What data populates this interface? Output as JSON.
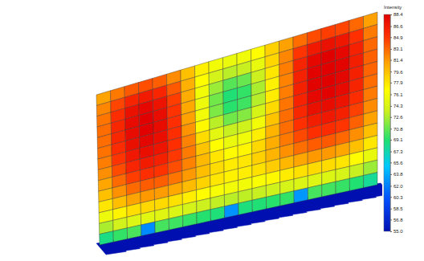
{
  "chart_data": {
    "type": "heatmap",
    "colorbar": {
      "title": "Intensity",
      "range": [
        55,
        88.4
      ],
      "ticks": [
        88.4,
        86.6,
        84.9,
        83.1,
        81.4,
        79.6,
        77.9,
        76.1,
        74.3,
        72.6,
        70.8,
        69.1,
        67.3,
        65.6,
        63.8,
        {
          "value": 62,
          "label": "62.0"
        },
        60.3,
        58.5,
        56.8,
        {
          "value": 55,
          "label": "55.0"
        }
      ]
    },
    "cells": [
      [
        80.9,
        82.5,
        83.6,
        84.0,
        83.4,
        81.8,
        79.6,
        77.4,
        76.0,
        75.5,
        75.8,
        76.9,
        78.8,
        81.0,
        82.9,
        84.1,
        84.6,
        84.3,
        83.1,
        81.0
      ],
      [
        82.0,
        84.3,
        85.9,
        86.5,
        85.8,
        83.6,
        80.3,
        76.8,
        74.1,
        73.0,
        73.4,
        75.4,
        78.6,
        82.0,
        84.9,
        86.6,
        87.2,
        86.8,
        85.1,
        82.4
      ],
      [
        82.6,
        85.3,
        87.2,
        87.9,
        87.1,
        84.6,
        80.5,
        76.0,
        72.2,
        70.4,
        70.9,
        73.6,
        77.8,
        82.3,
        85.9,
        87.9,
        88.4,
        87.9,
        86.1,
        83.1
      ],
      [
        82.9,
        85.7,
        87.6,
        88.3,
        87.5,
        85.0,
        80.7,
        75.6,
        71.1,
        68.9,
        69.5,
        72.6,
        77.3,
        82.1,
        86.1,
        88.2,
        88.4,
        88.1,
        86.3,
        83.3
      ],
      [
        82.9,
        85.7,
        87.6,
        88.3,
        87.6,
        85.2,
        81.0,
        75.9,
        71.4,
        69.2,
        69.8,
        72.9,
        77.6,
        82.3,
        86.2,
        88.2,
        88.4,
        88.0,
        86.2,
        83.2
      ],
      [
        82.7,
        85.4,
        87.3,
        88.0,
        87.4,
        85.3,
        81.5,
        77.0,
        73.0,
        71.1,
        71.6,
        74.3,
        78.4,
        82.6,
        86.0,
        87.9,
        88.2,
        87.7,
        85.9,
        82.9
      ],
      [
        82.3,
        84.9,
        86.7,
        87.4,
        87.0,
        85.2,
        82.1,
        78.3,
        75.0,
        73.4,
        73.8,
        76.0,
        79.4,
        82.9,
        85.7,
        87.3,
        87.6,
        87.1,
        85.3,
        82.4
      ],
      [
        81.7,
        84.1,
        85.8,
        86.5,
        86.2,
        84.8,
        82.4,
        79.4,
        76.8,
        75.5,
        75.8,
        77.5,
        80.1,
        82.9,
        85.1,
        86.4,
        86.7,
        86.2,
        84.5,
        81.8
      ],
      [
        80.8,
        83.0,
        84.6,
        85.2,
        85.0,
        84.0,
        82.1,
        79.9,
        77.9,
        76.9,
        77.1,
        78.5,
        80.4,
        82.5,
        84.2,
        85.2,
        85.4,
        84.9,
        83.3,
        80.9
      ],
      [
        79.6,
        81.6,
        83.0,
        83.5,
        83.4,
        82.6,
        81.3,
        79.7,
        78.3,
        77.6,
        77.8,
        78.8,
        80.1,
        81.6,
        82.8,
        83.5,
        83.6,
        83.1,
        81.7,
        79.6
      ],
      [
        77.9,
        79.7,
        80.9,
        81.3,
        81.2,
        80.7,
        79.8,
        78.7,
        77.8,
        77.3,
        77.5,
        78.1,
        79.0,
        80.0,
        80.8,
        81.3,
        81.3,
        80.8,
        79.6,
        77.8
      ],
      [
        75.6,
        77.2,
        78.2,
        78.5,
        78.4,
        78.1,
        77.5,
        76.8,
        76.2,
        75.9,
        76.0,
        76.4,
        77.0,
        77.6,
        78.1,
        78.4,
        78.3,
        77.9,
        76.9,
        75.4
      ],
      [
        72.6,
        73.9,
        74.7,
        74.9,
        74.8,
        74.5,
        74.1,
        73.6,
        73.2,
        73.0,
        73.1,
        73.4,
        73.8,
        74.2,
        74.5,
        74.7,
        74.6,
        74.2,
        73.4,
        72.2
      ],
      [
        68.5,
        69.5,
        70.1,
        62.5,
        70.0,
        69.8,
        69.5,
        69.1,
        68.8,
        62.8,
        68.7,
        68.9,
        69.2,
        69.5,
        63.0,
        70.0,
        69.9,
        69.6,
        69.0,
        67.9
      ]
    ],
    "base_values": [
      55,
      55,
      55,
      55,
      55,
      55,
      55,
      55,
      55,
      55,
      55,
      55,
      55,
      55,
      55,
      55,
      55,
      55,
      55,
      55
    ]
  }
}
